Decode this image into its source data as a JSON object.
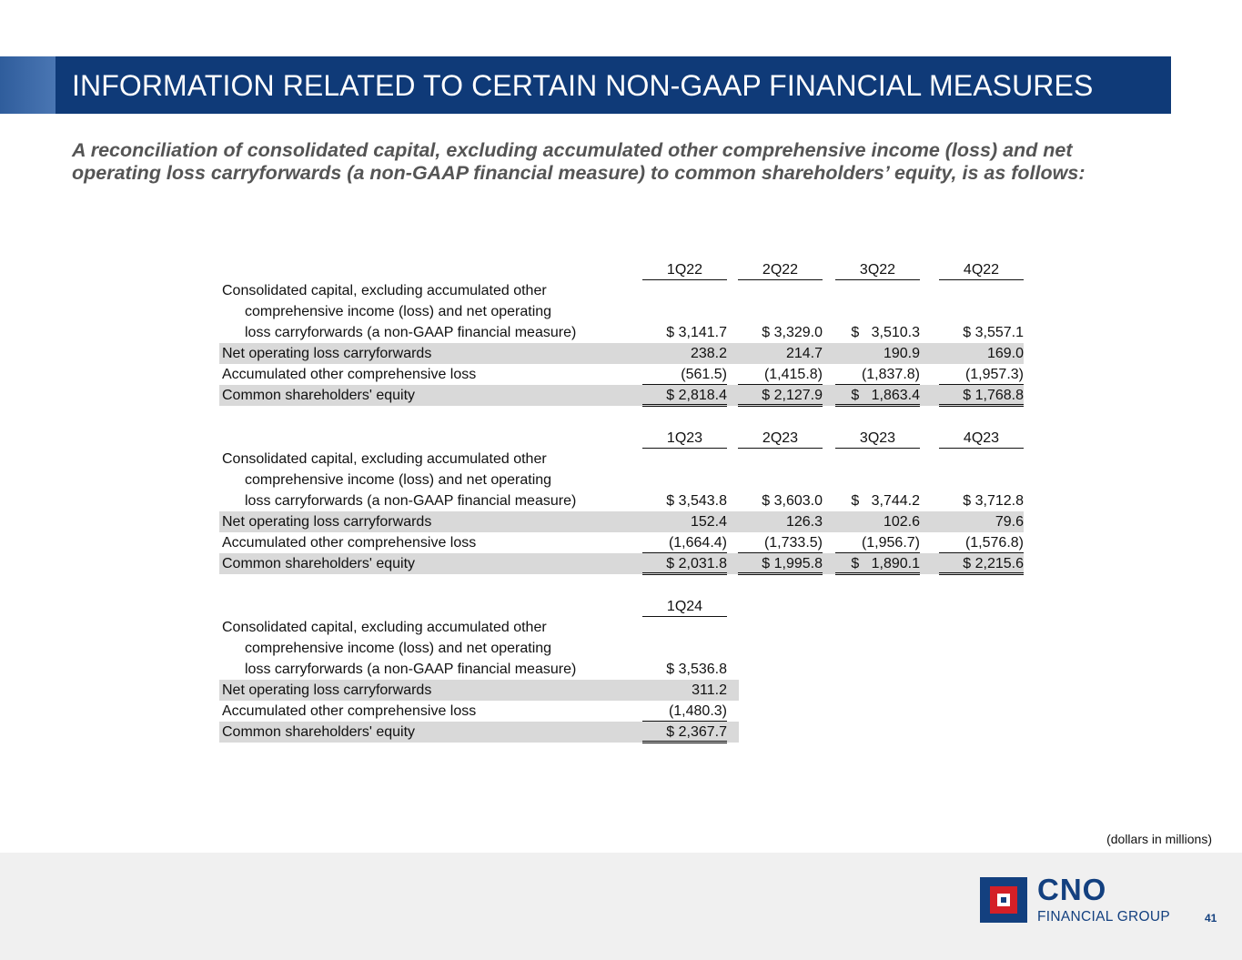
{
  "header": {
    "title": "INFORMATION RELATED TO CERTAIN NON-GAAP FINANCIAL MEASURES",
    "subtitle_line1": "A reconciliation of consolidated capital, excluding accumulated other comprehensive income (loss) and net",
    "subtitle_line2": "operating loss carryforwards (a non-GAAP financial measure) to common shareholders’ equity, is as follows:"
  },
  "labels": {
    "capital_line1": "Consolidated capital, excluding accumulated other",
    "capital_line2": "comprehensive income (loss) and net operating",
    "capital_line3": "loss carryforwards (a non-GAAP financial measure)",
    "nol": "Net operating loss carryforwards",
    "aoci": "Accumulated other comprehensive loss",
    "equity": "Common shareholders' equity"
  },
  "sections": [
    {
      "periods": [
        "1Q22",
        "2Q22",
        "3Q22",
        "4Q22"
      ],
      "capital": [
        "$ 3,141.7",
        "$ 3,329.0",
        "$   3,510.3",
        "$ 3,557.1"
      ],
      "nol": [
        "238.2",
        "214.7",
        "190.9",
        "169.0"
      ],
      "aoci": [
        "(561.5)",
        "(1,415.8)",
        "(1,837.8)",
        "(1,957.3)"
      ],
      "equity": [
        "$ 2,818.4",
        "$ 2,127.9",
        "$   1,863.4",
        "$ 1,768.8"
      ]
    },
    {
      "periods": [
        "1Q23",
        "2Q23",
        "3Q23",
        "4Q23"
      ],
      "capital": [
        "$ 3,543.8",
        "$ 3,603.0",
        "$   3,744.2",
        "$ 3,712.8"
      ],
      "nol": [
        "152.4",
        "126.3",
        "102.6",
        "79.6"
      ],
      "aoci": [
        "(1,664.4)",
        "(1,733.5)",
        "(1,956.7)",
        "(1,576.8)"
      ],
      "equity": [
        "$ 2,031.8",
        "$ 1,995.8",
        "$   1,890.1",
        "$ 2,215.6"
      ]
    },
    {
      "periods": [
        "1Q24"
      ],
      "capital": [
        "$ 3,536.8"
      ],
      "nol": [
        "311.2"
      ],
      "aoci": [
        "(1,480.3)"
      ],
      "equity": [
        "$ 2,367.7"
      ]
    }
  ],
  "footer": {
    "units_note": "(dollars in millions)",
    "logo_name": "CNO",
    "logo_sub": "FINANCIAL GROUP",
    "page_number": "41"
  },
  "colors": {
    "brand_blue": "#13407f",
    "title_bar": "#0f3a78",
    "logo_red": "#d42027",
    "row_shade": "#d9d9d9"
  }
}
